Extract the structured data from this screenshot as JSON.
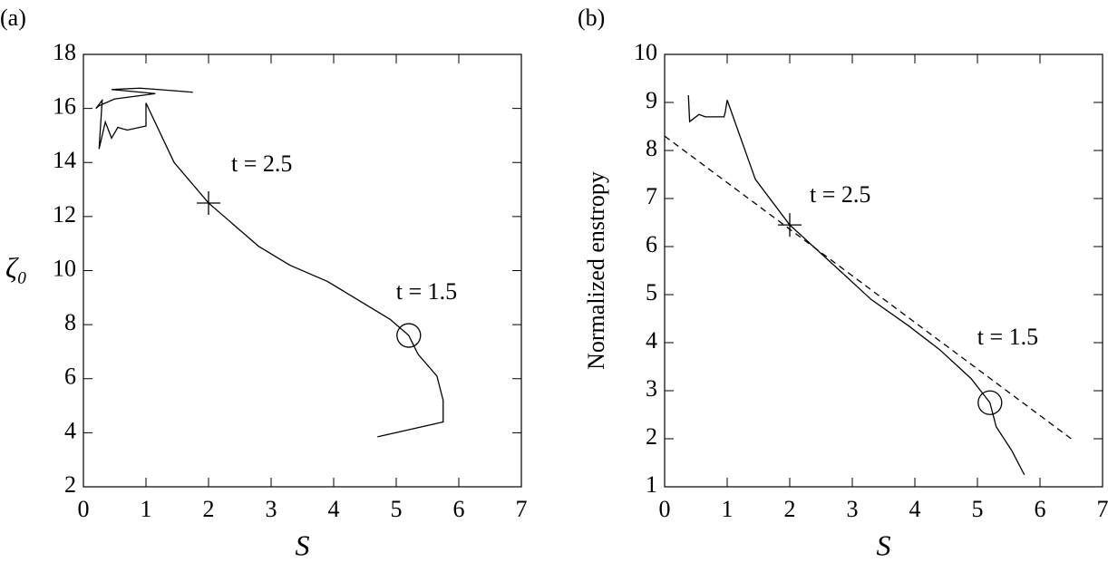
{
  "chart_data": [
    {
      "type": "line",
      "panel_label": "(a)",
      "x_label": "S",
      "y_label": "ζ₀",
      "xlim": [
        0,
        7
      ],
      "ylim": [
        2,
        18
      ],
      "xticks": [
        0,
        1,
        2,
        3,
        4,
        5,
        6,
        7
      ],
      "yticks": [
        2,
        4,
        6,
        8,
        10,
        12,
        14,
        16,
        18
      ],
      "series": [
        {
          "color": "#000000",
          "linestyle": "solid",
          "x": [
            1.75,
            1.2,
            0.9,
            0.45,
            1.15,
            0.5,
            0.25,
            0.2,
            0.3,
            0.25,
            0.35,
            0.4,
            0.45,
            0.55,
            0.7,
            1.0,
            1.0,
            1.45,
            2.0,
            2.8,
            3.3,
            3.9,
            4.4,
            4.9,
            5.2,
            5.35,
            5.65,
            5.75,
            5.75,
            4.7
          ],
          "values": [
            16.6,
            16.7,
            16.75,
            16.7,
            16.55,
            16.35,
            16.1,
            16.0,
            16.3,
            14.5,
            15.5,
            15.2,
            14.9,
            15.3,
            15.2,
            15.35,
            16.2,
            14.0,
            12.5,
            10.9,
            10.2,
            9.6,
            8.9,
            8.2,
            7.6,
            6.9,
            6.1,
            5.2,
            4.4,
            3.85
          ]
        }
      ],
      "annotations": [
        {
          "marker": "plus",
          "x": 2.0,
          "y": 12.5,
          "label": "t = 2.5"
        },
        {
          "marker": "circle",
          "x": 5.2,
          "y": 7.6,
          "label": "t = 1.5"
        }
      ]
    },
    {
      "type": "line",
      "panel_label": "(b)",
      "x_label": "S",
      "y_label": "Normalized enstropy",
      "xlim": [
        0,
        7
      ],
      "ylim": [
        1,
        10
      ],
      "xticks": [
        0,
        1,
        2,
        3,
        4,
        5,
        6,
        7
      ],
      "yticks": [
        1,
        2,
        3,
        4,
        5,
        6,
        7,
        8,
        9,
        10
      ],
      "series": [
        {
          "color": "#000000",
          "linestyle": "solid",
          "x": [
            0.38,
            0.4,
            0.55,
            0.65,
            0.95,
            0.97,
            1.0,
            1.45,
            2.0,
            2.8,
            3.3,
            3.9,
            4.4,
            4.9,
            5.2,
            5.3,
            5.55,
            5.75
          ],
          "values": [
            9.15,
            8.6,
            8.75,
            8.7,
            8.7,
            8.8,
            9.05,
            7.4,
            6.45,
            5.5,
            4.9,
            4.35,
            3.85,
            3.25,
            2.75,
            2.25,
            1.75,
            1.25
          ]
        },
        {
          "color": "#000000",
          "linestyle": "dashed",
          "x": [
            0,
            6.55
          ],
          "values": [
            8.3,
            1.95
          ]
        }
      ],
      "annotations": [
        {
          "marker": "plus",
          "x": 2.0,
          "y": 6.45,
          "label": "t = 2.5"
        },
        {
          "marker": "circle",
          "x": 5.2,
          "y": 2.75,
          "label": "t = 1.5"
        }
      ]
    }
  ]
}
